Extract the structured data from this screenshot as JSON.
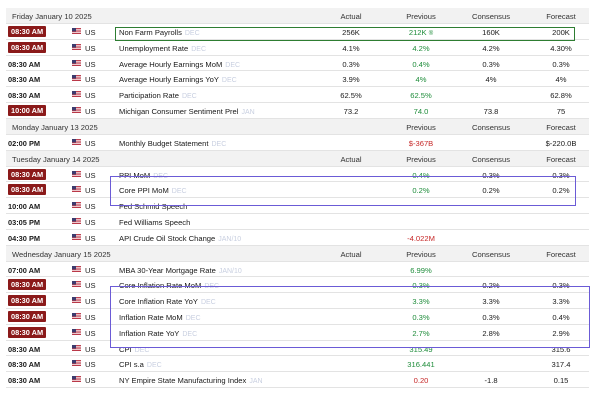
{
  "days": [
    {
      "date": "Friday January 10 2025",
      "headers": {
        "actual": "Actual",
        "previous": "Previous",
        "consensus": "Consensus",
        "forecast": "Forecast"
      },
      "events": [
        {
          "time": "08:30 AM",
          "high": true,
          "country": "US",
          "event": "Non Farm Payrolls",
          "ref": "DEC",
          "actual": "256K",
          "previous": "212K",
          "previous_mark": "®",
          "consensus": "160K",
          "forecast": "200K",
          "prev_color": "green"
        },
        {
          "time": "08:30 AM",
          "high": true,
          "country": "US",
          "event": "Unemployment Rate",
          "ref": "DEC",
          "actual": "4.1%",
          "previous": "4.2%",
          "consensus": "4.2%",
          "forecast": "4.30%",
          "prev_color": "green"
        },
        {
          "time": "08:30 AM",
          "high": false,
          "country": "US",
          "event": "Average Hourly Earnings MoM",
          "ref": "DEC",
          "actual": "0.3%",
          "previous": "0.4%",
          "consensus": "0.3%",
          "forecast": "0.3%",
          "prev_color": "green"
        },
        {
          "time": "08:30 AM",
          "high": false,
          "country": "US",
          "event": "Average Hourly Earnings YoY",
          "ref": "DEC",
          "actual": "3.9%",
          "previous": "4%",
          "consensus": "4%",
          "forecast": "4%",
          "prev_color": "green"
        },
        {
          "time": "08:30 AM",
          "high": false,
          "country": "US",
          "event": "Participation Rate",
          "ref": "DEC",
          "actual": "62.5%",
          "previous": "62.5%",
          "consensus": "",
          "forecast": "62.8%",
          "prev_color": "green"
        },
        {
          "time": "10:00 AM",
          "high": true,
          "country": "US",
          "event": "Michigan Consumer Sentiment Prel",
          "ref": "JAN",
          "actual": "73.2",
          "previous": "74.0",
          "consensus": "73.8",
          "forecast": "75",
          "prev_color": "green"
        }
      ]
    },
    {
      "date": "Monday January 13 2025",
      "headers": {
        "actual": "",
        "previous": "Previous",
        "consensus": "Consensus",
        "forecast": "Forecast"
      },
      "events": [
        {
          "time": "02:00 PM",
          "high": false,
          "country": "US",
          "event": "Monthly Budget Statement",
          "ref": "DEC",
          "actual": "",
          "previous": "$-367B",
          "consensus": "",
          "forecast": "$-220.0B",
          "prev_color": "red"
        }
      ]
    },
    {
      "date": "Tuesday January 14 2025",
      "headers": {
        "actual": "Actual",
        "previous": "Previous",
        "consensus": "Consensus",
        "forecast": "Forecast"
      },
      "events": [
        {
          "time": "08:30 AM",
          "high": true,
          "country": "US",
          "event": "PPI MoM",
          "ref": "DEC",
          "actual": "",
          "previous": "0.4%",
          "consensus": "0.3%",
          "forecast": "0.3%",
          "prev_color": "green"
        },
        {
          "time": "08:30 AM",
          "high": true,
          "country": "US",
          "event": "Core PPI MoM",
          "ref": "DEC",
          "actual": "",
          "previous": "0.2%",
          "consensus": "0.2%",
          "forecast": "0.2%",
          "prev_color": "green"
        },
        {
          "time": "10:00 AM",
          "high": false,
          "country": "US",
          "event": "Fed Schmid Speech",
          "ref": "",
          "actual": "",
          "previous": "",
          "consensus": "",
          "forecast": "",
          "prev_color": "green"
        },
        {
          "time": "03:05 PM",
          "high": false,
          "country": "US",
          "event": "Fed Williams Speech",
          "ref": "",
          "actual": "",
          "previous": "",
          "consensus": "",
          "forecast": "",
          "prev_color": "green"
        },
        {
          "time": "04:30 PM",
          "high": false,
          "country": "US",
          "event": "API Crude Oil Stock Change",
          "ref": "JAN/10",
          "actual": "",
          "previous": "-4.022M",
          "consensus": "",
          "forecast": "",
          "prev_color": "red"
        }
      ]
    },
    {
      "date": "Wednesday January 15 2025",
      "headers": {
        "actual": "Actual",
        "previous": "Previous",
        "consensus": "Consensus",
        "forecast": "Forecast"
      },
      "events": [
        {
          "time": "07:00 AM",
          "high": false,
          "country": "US",
          "event": "MBA 30-Year Mortgage Rate",
          "ref": "JAN/10",
          "actual": "",
          "previous": "6.99%",
          "consensus": "",
          "forecast": "",
          "prev_color": "green"
        },
        {
          "time": "08:30 AM",
          "high": true,
          "country": "US",
          "event": "Core Inflation Rate MoM",
          "ref": "DEC",
          "actual": "",
          "previous": "0.3%",
          "consensus": "0.2%",
          "forecast": "0.3%",
          "prev_color": "green"
        },
        {
          "time": "08:30 AM",
          "high": true,
          "country": "US",
          "event": "Core Inflation Rate YoY",
          "ref": "DEC",
          "actual": "",
          "previous": "3.3%",
          "consensus": "3.3%",
          "forecast": "3.3%",
          "prev_color": "green"
        },
        {
          "time": "08:30 AM",
          "high": true,
          "country": "US",
          "event": "Inflation Rate MoM",
          "ref": "DEC",
          "actual": "",
          "previous": "0.3%",
          "consensus": "0.3%",
          "forecast": "0.4%",
          "prev_color": "green"
        },
        {
          "time": "08:30 AM",
          "high": true,
          "country": "US",
          "event": "Inflation Rate YoY",
          "ref": "DEC",
          "actual": "",
          "previous": "2.7%",
          "consensus": "2.8%",
          "forecast": "2.9%",
          "prev_color": "green"
        },
        {
          "time": "08:30 AM",
          "high": false,
          "country": "US",
          "event": "CPI",
          "ref": "DEC",
          "actual": "",
          "previous": "315.49",
          "consensus": "",
          "forecast": "315.6",
          "prev_color": "green"
        },
        {
          "time": "08:30 AM",
          "high": false,
          "country": "US",
          "event": "CPI s.a",
          "ref": "DEC",
          "actual": "",
          "previous": "316.441",
          "consensus": "",
          "forecast": "317.4",
          "prev_color": "green"
        },
        {
          "time": "08:30 AM",
          "high": false,
          "country": "US",
          "event": "NY Empire State Manufacturing Index",
          "ref": "JAN",
          "actual": "",
          "previous": "0.20",
          "consensus": "-1.8",
          "forecast": "0.15",
          "prev_color": "red"
        }
      ]
    }
  ],
  "colors": {
    "high_time_bg": "#8b1a1a",
    "positive": "#1e8c3a",
    "negative": "#c62828",
    "ref_text": "#c8cfe0"
  }
}
